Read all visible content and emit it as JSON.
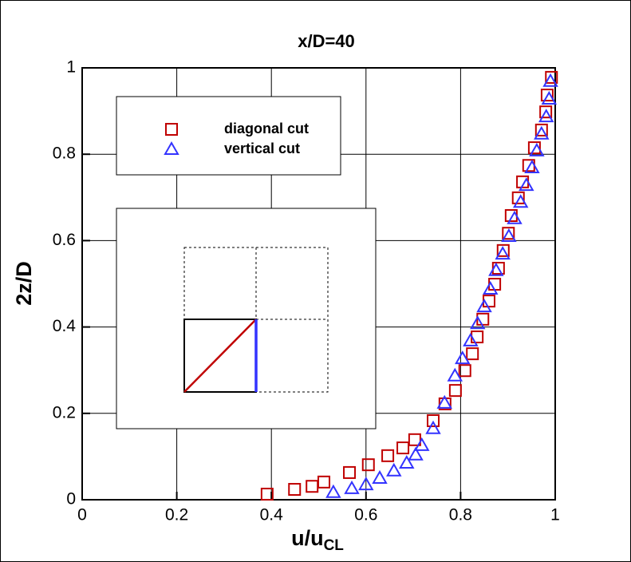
{
  "chart_data": {
    "type": "scatter",
    "title": "x/D=40",
    "xlabel": "u/u",
    "xlabel_sub": "CL",
    "ylabel": "2z/D",
    "xlim": [
      0,
      1
    ],
    "ylim": [
      0,
      1
    ],
    "xticks": [
      0,
      0.2,
      0.4,
      0.6,
      0.8,
      1
    ],
    "yticks": [
      0,
      0.2,
      0.4,
      0.6,
      0.8,
      1
    ],
    "grid": true,
    "series": [
      {
        "name": "diagonal cut",
        "color": "#c00000",
        "marker": "square",
        "x": [
          0.391,
          0.449,
          0.486,
          0.511,
          0.565,
          0.605,
          0.646,
          0.678,
          0.703,
          0.742,
          0.767,
          0.789,
          0.809,
          0.825,
          0.835,
          0.847,
          0.86,
          0.872,
          0.88,
          0.89,
          0.901,
          0.907,
          0.922,
          0.931,
          0.944,
          0.956,
          0.971,
          0.98,
          0.983,
          0.992
        ],
        "values": [
          0.013,
          0.024,
          0.031,
          0.041,
          0.063,
          0.081,
          0.102,
          0.12,
          0.139,
          0.183,
          0.222,
          0.253,
          0.299,
          0.338,
          0.377,
          0.418,
          0.46,
          0.499,
          0.536,
          0.577,
          0.617,
          0.658,
          0.699,
          0.736,
          0.774,
          0.815,
          0.856,
          0.898,
          0.937,
          0.978
        ]
      },
      {
        "name": "vertical cut",
        "color": "#3333ff",
        "marker": "triangle",
        "x": [
          0.531,
          0.57,
          0.6,
          0.629,
          0.659,
          0.686,
          0.705,
          0.718,
          0.742,
          0.766,
          0.788,
          0.804,
          0.821,
          0.836,
          0.85,
          0.863,
          0.875,
          0.889,
          0.902,
          0.914,
          0.927,
          0.939,
          0.951,
          0.961,
          0.971,
          0.981,
          0.987,
          0.99
        ],
        "values": [
          0.017,
          0.026,
          0.035,
          0.05,
          0.067,
          0.085,
          0.104,
          0.126,
          0.165,
          0.224,
          0.287,
          0.327,
          0.368,
          0.408,
          0.447,
          0.488,
          0.531,
          0.569,
          0.61,
          0.651,
          0.689,
          0.728,
          0.769,
          0.808,
          0.847,
          0.887,
          0.928,
          0.969
        ]
      }
    ]
  }
}
